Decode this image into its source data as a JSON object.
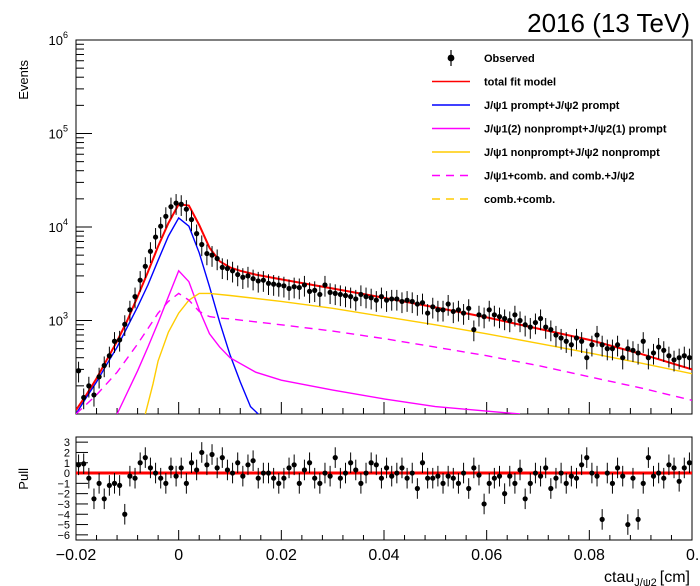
{
  "header": {
    "title": "2016 (13 TeV)"
  },
  "chart_data": {
    "type": "scatter",
    "main": {
      "ylabel": "Events",
      "yscale": "log",
      "xlim": [
        -0.02,
        0.1
      ],
      "ylim": [
        100,
        1000000
      ],
      "y_ticks": [
        {
          "value": 1000,
          "base": "10",
          "exp": "3"
        },
        {
          "value": 10000,
          "base": "10",
          "exp": "4"
        },
        {
          "value": 100000,
          "base": "10",
          "exp": "5"
        },
        {
          "value": 1000000,
          "base": "10",
          "exp": "6"
        }
      ],
      "legend_position": "top-right",
      "series": [
        {
          "name": "Observed",
          "style": "points",
          "color": "#000000",
          "x": [
            -0.0195,
            -0.0185,
            -0.0175,
            -0.0165,
            -0.0155,
            -0.0145,
            -0.0135,
            -0.0125,
            -0.0115,
            -0.0105,
            -0.0095,
            -0.0085,
            -0.0075,
            -0.0065,
            -0.0055,
            -0.0045,
            -0.0035,
            -0.0025,
            -0.0015,
            -0.0005,
            0.0005,
            0.0015,
            0.0025,
            0.0035,
            0.0045,
            0.0055,
            0.0065,
            0.0075,
            0.0085,
            0.0095,
            0.0105,
            0.0115,
            0.0125,
            0.0135,
            0.0145,
            0.0155,
            0.0165,
            0.0175,
            0.0185,
            0.0195,
            0.0205,
            0.0215,
            0.0225,
            0.0235,
            0.0245,
            0.0255,
            0.0265,
            0.0275,
            0.0285,
            0.0295,
            0.0305,
            0.0315,
            0.0325,
            0.0335,
            0.0345,
            0.0355,
            0.0365,
            0.0375,
            0.0385,
            0.0395,
            0.0405,
            0.0415,
            0.0425,
            0.0435,
            0.0445,
            0.0455,
            0.0465,
            0.0475,
            0.0485,
            0.0495,
            0.0505,
            0.0515,
            0.0525,
            0.0535,
            0.0545,
            0.0555,
            0.0565,
            0.0575,
            0.0585,
            0.0595,
            0.0605,
            0.0615,
            0.0625,
            0.0635,
            0.0645,
            0.0655,
            0.0665,
            0.0675,
            0.0685,
            0.0695,
            0.0705,
            0.0715,
            0.0725,
            0.0735,
            0.0745,
            0.0755,
            0.0765,
            0.0775,
            0.0785,
            0.0795,
            0.0805,
            0.0815,
            0.0825,
            0.0835,
            0.0845,
            0.0855,
            0.0865,
            0.0875,
            0.0885,
            0.0895,
            0.0905,
            0.0915,
            0.0925,
            0.0935,
            0.0945,
            0.0955,
            0.0965,
            0.0975,
            0.0985,
            0.0995
          ],
          "y": [
            290,
            150,
            200,
            160,
            250,
            330,
            420,
            600,
            620,
            910,
            1300,
            1800,
            2700,
            3800,
            5500,
            7800,
            10200,
            13000,
            16500,
            18000,
            17500,
            15500,
            12000,
            8500,
            6500,
            5200,
            5000,
            4600,
            3700,
            3600,
            3400,
            3100,
            2900,
            3000,
            2800,
            2650,
            2700,
            2500,
            2450,
            2400,
            2350,
            2200,
            2300,
            2250,
            2400,
            2050,
            2100,
            1900,
            2400,
            2000,
            1950,
            1900,
            1850,
            1800,
            1700,
            1900,
            1800,
            1750,
            1650,
            1800,
            1650,
            1700,
            1700,
            1600,
            1650,
            1600,
            1500,
            1550,
            1200,
            1400,
            1300,
            1300,
            1500,
            1250,
            1300,
            1200,
            1350,
            800,
            1150,
            1100,
            1300,
            1150,
            1100,
            1050,
            1000,
            1150,
            1000,
            900,
            850,
            950,
            1050,
            850,
            800,
            700,
            650,
            600,
            550,
            650,
            600,
            400,
            550,
            700,
            550,
            500,
            500,
            550,
            400,
            500,
            480,
            450,
            600,
            400,
            450,
            520,
            480,
            420,
            380,
            400,
            420,
            400
          ],
          "y_err_ratio": 0.25
        },
        {
          "name": "total fit model",
          "style": "solid",
          "color": "#ff0000",
          "x": [
            -0.02,
            -0.018,
            -0.016,
            -0.014,
            -0.012,
            -0.01,
            -0.008,
            -0.006,
            -0.004,
            -0.002,
            0,
            0.002,
            0.004,
            0.006,
            0.008,
            0.01,
            0.012,
            0.015,
            0.02,
            0.03,
            0.04,
            0.05,
            0.06,
            0.07,
            0.08,
            0.09,
            0.1
          ],
          "y": [
            110,
            160,
            240,
            380,
            600,
            1000,
            1800,
            3300,
            6200,
            11000,
            17500,
            17000,
            10500,
            6000,
            4300,
            3700,
            3400,
            3100,
            2750,
            2200,
            1750,
            1380,
            1080,
            820,
            620,
            440,
            300
          ]
        },
        {
          "name": "J/ψ1 prompt+J/ψ2 prompt",
          "style": "solid",
          "color": "#0000ff",
          "x": [
            -0.02,
            -0.018,
            -0.016,
            -0.014,
            -0.012,
            -0.01,
            -0.008,
            -0.006,
            -0.004,
            -0.002,
            0,
            0.002,
            0.004,
            0.006,
            0.008,
            0.01,
            0.012,
            0.014,
            0.0155
          ],
          "y": [
            100,
            150,
            220,
            340,
            520,
            850,
            1400,
            2400,
            4400,
            8000,
            12500,
            10200,
            5300,
            2300,
            960,
            430,
            220,
            120,
            100
          ]
        },
        {
          "name": "J/ψ1(2) nonprompt+J/ψ2(1) prompt",
          "style": "solid",
          "color": "#ff00ff",
          "x": [
            -0.012,
            -0.01,
            -0.008,
            -0.006,
            -0.004,
            -0.002,
            0,
            0.002,
            0.004,
            0.006,
            0.008,
            0.01,
            0.015,
            0.02,
            0.03,
            0.04,
            0.05,
            0.0665
          ],
          "y": [
            100,
            170,
            290,
            520,
            950,
            1800,
            3400,
            2600,
            1300,
            720,
            520,
            400,
            280,
            230,
            180,
            145,
            120,
            100
          ]
        },
        {
          "name": "J/ψ1 nonprompt+J/ψ2 nonprompt",
          "style": "solid",
          "color": "#ffcc00",
          "x": [
            -0.0065,
            -0.005,
            -0.004,
            -0.002,
            0,
            0.002,
            0.004,
            0.006,
            0.01,
            0.02,
            0.03,
            0.04,
            0.05,
            0.06,
            0.07,
            0.08,
            0.09,
            0.1
          ],
          "y": [
            100,
            210,
            370,
            750,
            1200,
            1650,
            1950,
            1950,
            1850,
            1600,
            1350,
            1100,
            900,
            720,
            570,
            450,
            350,
            270
          ]
        },
        {
          "name": "J/ψ1+comb. and comb.+J/ψ2",
          "style": "dashed",
          "color": "#ff00ff",
          "x": [
            -0.02,
            -0.016,
            -0.012,
            -0.008,
            -0.006,
            -0.004,
            -0.002,
            0,
            0.002,
            0.004,
            0.006,
            0.008,
            0.01,
            0.02,
            0.03,
            0.04,
            0.05,
            0.06,
            0.07,
            0.08,
            0.09,
            0.1
          ],
          "y": [
            100,
            160,
            280,
            560,
            820,
            1200,
            1600,
            1950,
            1650,
            1250,
            1100,
            1060,
            1040,
            900,
            770,
            640,
            520,
            420,
            330,
            250,
            190,
            140
          ]
        },
        {
          "name": "comb.+comb.",
          "style": "dashed",
          "color": "#ffcc00",
          "x": [],
          "y": []
        }
      ]
    },
    "pull": {
      "ylabel": "Pull",
      "xlabel": "ctau",
      "xlabel_sub": "J/ψ2",
      "xlabel_unit": "[cm]",
      "xlim": [
        -0.02,
        0.1
      ],
      "ylim": [
        -6.5,
        3.5
      ],
      "y_ticks": [
        3,
        2,
        1,
        0,
        -1,
        -2,
        -3,
        -4,
        -5,
        -6
      ],
      "x_ticks": [
        -0.02,
        0,
        0.02,
        0.04,
        0.06,
        0.08,
        0.1
      ],
      "x_tick_labels": [
        "−0.02",
        "0",
        "0.02",
        "0.04",
        "0.06",
        "0.08",
        "0.1"
      ],
      "line": {
        "y": 0,
        "color": "#ff0000"
      },
      "x": [
        -0.0195,
        -0.0185,
        -0.0175,
        -0.0165,
        -0.0155,
        -0.0145,
        -0.0135,
        -0.0125,
        -0.0115,
        -0.0105,
        -0.0095,
        -0.0085,
        -0.0075,
        -0.0065,
        -0.0055,
        -0.0045,
        -0.0035,
        -0.0025,
        -0.0015,
        -0.0005,
        0.0005,
        0.0015,
        0.0025,
        0.0035,
        0.0045,
        0.0055,
        0.0065,
        0.0075,
        0.0085,
        0.0095,
        0.0105,
        0.0115,
        0.0125,
        0.0135,
        0.0145,
        0.0155,
        0.0165,
        0.0175,
        0.0185,
        0.0195,
        0.0205,
        0.0215,
        0.0225,
        0.0235,
        0.0245,
        0.0255,
        0.0265,
        0.0275,
        0.0285,
        0.0295,
        0.0305,
        0.0315,
        0.0325,
        0.0335,
        0.0345,
        0.0355,
        0.0365,
        0.0375,
        0.0385,
        0.0395,
        0.0405,
        0.0415,
        0.0425,
        0.0435,
        0.0445,
        0.0455,
        0.0465,
        0.0475,
        0.0485,
        0.0495,
        0.0505,
        0.0515,
        0.0525,
        0.0535,
        0.0545,
        0.0555,
        0.0565,
        0.0575,
        0.0585,
        0.0595,
        0.0605,
        0.0615,
        0.0625,
        0.0635,
        0.0645,
        0.0655,
        0.0665,
        0.0675,
        0.0685,
        0.0695,
        0.0705,
        0.0715,
        0.0725,
        0.0735,
        0.0745,
        0.0755,
        0.0765,
        0.0775,
        0.0785,
        0.0795,
        0.0805,
        0.0815,
        0.0825,
        0.0835,
        0.0845,
        0.0855,
        0.0865,
        0.0875,
        0.0885,
        0.0895,
        0.0905,
        0.0915,
        0.0925,
        0.0935,
        0.0945,
        0.0955,
        0.0965,
        0.0975,
        0.0985,
        0.0995
      ],
      "y": [
        0.8,
        0.9,
        -0.5,
        -2.5,
        -1,
        -2.5,
        -1.2,
        -1,
        -1.2,
        -4,
        -0.3,
        -0.5,
        1,
        1.5,
        0.5,
        0,
        -0.5,
        -1,
        0.5,
        -0.3,
        0.5,
        -1,
        1,
        0.3,
        2,
        0.8,
        1.8,
        0.5,
        1.5,
        0.3,
        0,
        1,
        -0.3,
        0.8,
        1.2,
        -0.5,
        0,
        0,
        -0.5,
        -1,
        -0.5,
        0.5,
        0.8,
        -1,
        0.3,
        1,
        -0.5,
        -1,
        0,
        -0.3,
        1.5,
        -0.5,
        0,
        1,
        0.3,
        -1,
        0,
        1,
        0.8,
        -0.5,
        0.5,
        -0.3,
        0,
        0.5,
        -0.5,
        0,
        -1.5,
        1,
        -0.5,
        -0.5,
        -0.3,
        -1,
        -0.3,
        -0.5,
        -1,
        0,
        -1.5,
        0.5,
        -0.2,
        -3,
        -1,
        -0.5,
        -0.3,
        -2,
        -0.3,
        -1,
        0.3,
        -2.5,
        -1,
        0,
        -0.3,
        0.5,
        -1.5,
        -0.5,
        0,
        -1,
        -0.3,
        -0.5,
        0.8,
        1.5,
        0,
        -0.3,
        -4.5,
        0,
        -1,
        0.5,
        -0.3,
        -5,
        -0.5,
        -4.5,
        -1,
        1.5,
        -0.3,
        0,
        -0.5,
        0.8,
        0.5,
        -0.8,
        0.5,
        1
      ]
    }
  }
}
